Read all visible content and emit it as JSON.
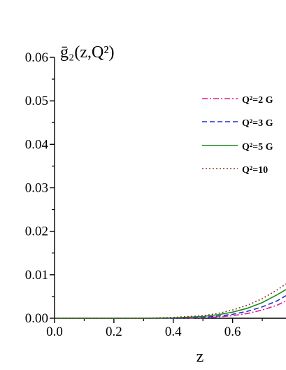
{
  "chart_data": {
    "type": "line",
    "ylabel": "ḡ₂(z,Q²)",
    "xlabel": "z",
    "xlim": [
      0.0,
      0.78
    ],
    "ylim": [
      0.0,
      0.06
    ],
    "x_ticks": [
      0.0,
      0.2,
      0.4,
      0.6
    ],
    "x_tick_labels": [
      "0.0",
      "0.2",
      "0.4",
      "0.6"
    ],
    "y_ticks": [
      0.0,
      0.01,
      0.02,
      0.03,
      0.04,
      0.05,
      0.06
    ],
    "y_tick_labels": [
      "0.00",
      "0.01",
      "0.02",
      "0.03",
      "0.04",
      "0.05",
      "0.06"
    ],
    "grid": false,
    "legend_position": "top-right",
    "series": [
      {
        "name": "Q²=2 G",
        "color": "#e0209c",
        "dash": "dashdot",
        "x": [
          0.0,
          0.3,
          0.4,
          0.5,
          0.55,
          0.6,
          0.65,
          0.7,
          0.75,
          0.78
        ],
        "y": [
          0.0,
          0.0,
          0.0,
          0.0001,
          0.0003,
          0.0006,
          0.0011,
          0.0019,
          0.003,
          0.004
        ]
      },
      {
        "name": "Q²=3 G",
        "color": "#1f2fd6",
        "dash": "dashed",
        "x": [
          0.0,
          0.3,
          0.4,
          0.5,
          0.55,
          0.6,
          0.65,
          0.7,
          0.75,
          0.78
        ],
        "y": [
          0.0,
          0.0,
          0.0,
          0.0002,
          0.0005,
          0.0009,
          0.0016,
          0.0026,
          0.004,
          0.0052
        ]
      },
      {
        "name": "Q²=5 G",
        "color": "#1a8a1a",
        "dash": "solid",
        "x": [
          0.0,
          0.3,
          0.4,
          0.5,
          0.55,
          0.6,
          0.65,
          0.7,
          0.75,
          0.78
        ],
        "y": [
          0.0,
          0.0,
          0.0001,
          0.0004,
          0.0008,
          0.0014,
          0.0023,
          0.0036,
          0.0054,
          0.0066
        ]
      },
      {
        "name": "Q²=10",
        "color": "#8b3a2a",
        "dash": "dotted",
        "x": [
          0.0,
          0.3,
          0.4,
          0.5,
          0.55,
          0.6,
          0.65,
          0.7,
          0.75,
          0.78
        ],
        "y": [
          0.0,
          0.0,
          0.0002,
          0.0006,
          0.0011,
          0.0019,
          0.003,
          0.0045,
          0.0065,
          0.0079
        ]
      }
    ]
  }
}
